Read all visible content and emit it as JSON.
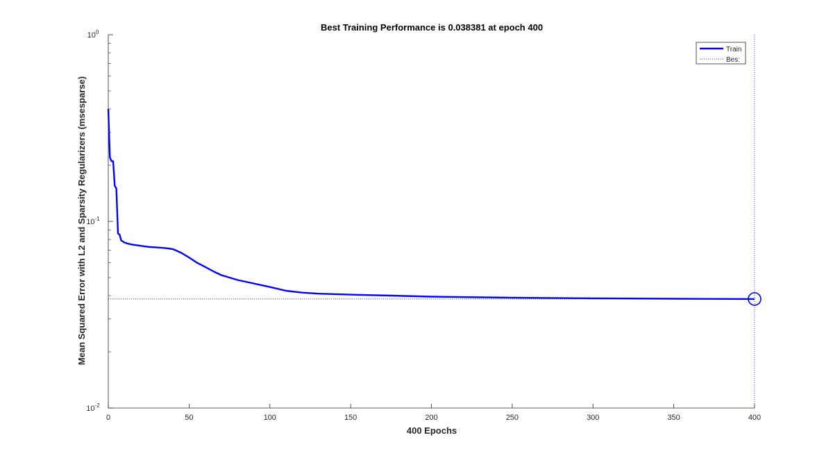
{
  "chart_data": {
    "type": "line",
    "title": "Best Training Performance is 0.038381 at epoch 400",
    "xlabel": "400 Epochs",
    "ylabel": "Mean Squared Error with L2 and Sparsity Regularizers  (msesparse)",
    "xlim": [
      0,
      400
    ],
    "ylim": [
      0.01,
      1
    ],
    "yscale": "log",
    "x_ticks": [
      0,
      50,
      100,
      150,
      200,
      250,
      300,
      350,
      400
    ],
    "x_tick_labels": [
      "0",
      "50",
      "100",
      "150",
      "200",
      "250",
      "300",
      "350",
      "400"
    ],
    "y_ticks": [
      0.01,
      0.1,
      1
    ],
    "y_tick_labels": [
      {
        "base": "10",
        "exp": "-2"
      },
      {
        "base": "10",
        "exp": "-1"
      },
      {
        "base": "10",
        "exp": "0"
      }
    ],
    "legend_placement": "top-right",
    "series": [
      {
        "name": "Train",
        "color": "#0000ff",
        "x": [
          0,
          1,
          2,
          3,
          4,
          5,
          6,
          7,
          8,
          10,
          12,
          15,
          20,
          25,
          30,
          35,
          40,
          45,
          50,
          55,
          60,
          65,
          70,
          75,
          80,
          90,
          100,
          110,
          120,
          130,
          150,
          175,
          200,
          250,
          300,
          350,
          400
        ],
        "y": [
          0.4,
          0.22,
          0.21,
          0.21,
          0.155,
          0.15,
          0.086,
          0.085,
          0.079,
          0.077,
          0.076,
          0.075,
          0.074,
          0.073,
          0.0725,
          0.072,
          0.071,
          0.068,
          0.064,
          0.06,
          0.057,
          0.054,
          0.0515,
          0.05,
          0.0485,
          0.0465,
          0.0445,
          0.0425,
          0.0415,
          0.041,
          0.0405,
          0.04,
          0.0395,
          0.039,
          0.0387,
          0.0385,
          0.038381
        ]
      }
    ],
    "best_line": {
      "name": "Best",
      "legend_label": "Bes:",
      "y": 0.038381,
      "x_end": 400,
      "color": "#000000"
    },
    "best_marker": {
      "x": 400,
      "y": 0.038381,
      "shape": "circle",
      "color": "#0000ff"
    },
    "grid": false
  }
}
